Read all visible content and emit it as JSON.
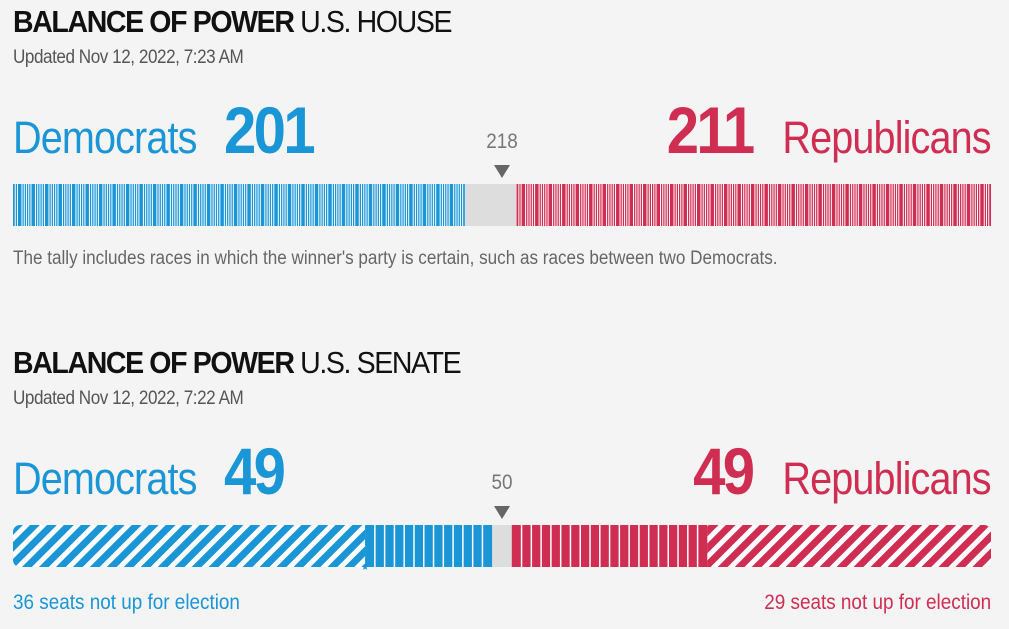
{
  "colors": {
    "dem": "#1a95d6",
    "rep": "#cf2e52",
    "undecided": "#dddddd",
    "separator": "#ffffff",
    "background": "#f4f4f4"
  },
  "house": {
    "title_bold": "BALANCE OF POWER",
    "title_light": "U.S. HOUSE",
    "updated": "Updated Nov 12, 2022, 7:23 AM",
    "dem_name": "Democrats",
    "dem_count": "201",
    "rep_name": "Republicans",
    "rep_count": "211",
    "majority": "218",
    "note": "The tally includes races in which the winner's party is certain, such as races between two Democrats."
  },
  "senate": {
    "title_bold": "BALANCE OF POWER",
    "title_light": "U.S. SENATE",
    "updated": "Updated Nov 12, 2022, 7:22 AM",
    "dem_name": "Democrats",
    "dem_count": "49",
    "rep_name": "Republicans",
    "rep_count": "49",
    "majority": "50",
    "dem_not_up": "36 seats not up for election",
    "rep_not_up": "29 seats not up for election"
  },
  "chart_data": [
    {
      "type": "bar",
      "title": "BALANCE OF POWER U.S. HOUSE",
      "orientation": "horizontal-stacked",
      "total_seats": 435,
      "majority": 218,
      "segments": [
        {
          "name": "Democrats",
          "seats": 201
        },
        {
          "name": "Undecided",
          "seats": 23
        },
        {
          "name": "Republicans",
          "seats": 211
        }
      ]
    },
    {
      "type": "bar",
      "title": "BALANCE OF POWER U.S. SENATE",
      "orientation": "horizontal-stacked",
      "total_seats": 100,
      "majority": 50,
      "segments": [
        {
          "name": "Democrats not up for election",
          "seats": 36
        },
        {
          "name": "Democrats",
          "seats": 13
        },
        {
          "name": "Undecided",
          "seats": 2
        },
        {
          "name": "Republicans",
          "seats": 20
        },
        {
          "name": "Republicans not up for election",
          "seats": 29
        }
      ]
    }
  ]
}
